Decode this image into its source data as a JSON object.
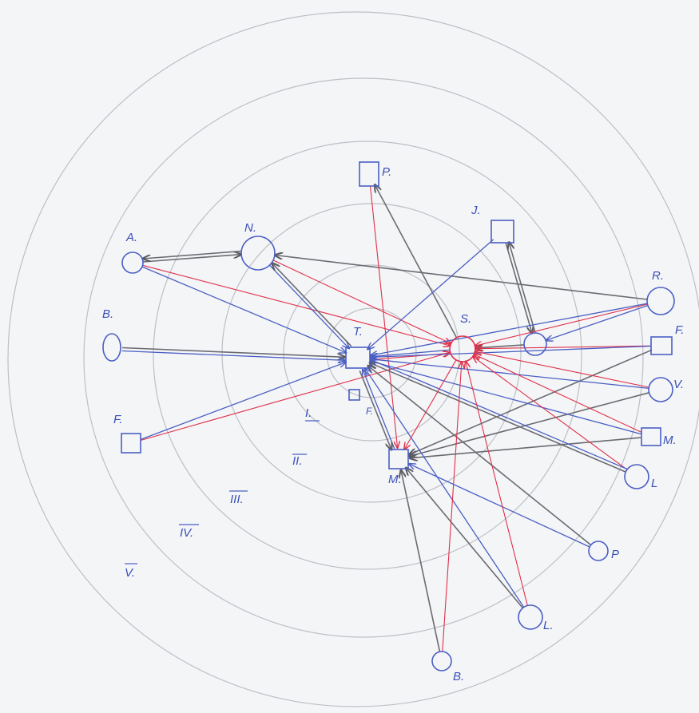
{
  "diagram": {
    "nodes": [
      {
        "id": "P1",
        "label": "P.",
        "shape": "square"
      },
      {
        "id": "J",
        "label": "J.",
        "shape": "square"
      },
      {
        "id": "A",
        "label": "A.",
        "shape": "circle"
      },
      {
        "id": "N",
        "label": "N.",
        "shape": "circle"
      },
      {
        "id": "R",
        "label": "R.",
        "shape": "circle"
      },
      {
        "id": "B1",
        "label": "B.",
        "shape": "circle"
      },
      {
        "id": "T",
        "label": "T.",
        "shape": "square"
      },
      {
        "id": "S",
        "label": "S.",
        "shape": "circle"
      },
      {
        "id": "X",
        "label": "",
        "shape": "circle"
      },
      {
        "id": "F1",
        "label": "F.",
        "shape": "square"
      },
      {
        "id": "V",
        "label": "V.",
        "shape": "circle"
      },
      {
        "id": "F2",
        "label": "F.",
        "shape": "square"
      },
      {
        "id": "Tsub",
        "label": "F.",
        "shape": "square"
      },
      {
        "id": "M1",
        "label": "M.",
        "shape": "square"
      },
      {
        "id": "M2",
        "label": "M.",
        "shape": "square"
      },
      {
        "id": "L1",
        "label": "L",
        "shape": "circle"
      },
      {
        "id": "P2",
        "label": "P",
        "shape": "circle"
      },
      {
        "id": "L2",
        "label": "L.",
        "shape": "circle"
      },
      {
        "id": "B2",
        "label": "B.",
        "shape": "circle"
      }
    ],
    "zones": [
      "I.",
      "II.",
      "III.",
      "IV.",
      "V."
    ],
    "edges": [
      {
        "from": "A",
        "to": "T",
        "color": "blue"
      },
      {
        "from": "A",
        "to": "S",
        "color": "red"
      },
      {
        "from": "A",
        "to": "N",
        "color": "gray"
      },
      {
        "from": "N",
        "to": "A",
        "color": "gray"
      },
      {
        "from": "N",
        "to": "S",
        "color": "red"
      },
      {
        "from": "N",
        "to": "T",
        "color": "blue"
      },
      {
        "from": "T",
        "to": "N",
        "color": "gray"
      },
      {
        "from": "R",
        "to": "N",
        "color": "gray"
      },
      {
        "from": "P1",
        "to": "M2",
        "color": "red"
      },
      {
        "from": "S",
        "to": "P1",
        "color": "gray"
      },
      {
        "from": "J",
        "to": "T",
        "color": "blue"
      },
      {
        "from": "J",
        "to": "X",
        "color": "gray"
      },
      {
        "from": "X",
        "to": "J",
        "color": "gray"
      },
      {
        "from": "B1",
        "to": "T",
        "color": "gray"
      },
      {
        "from": "B1",
        "to": "T",
        "color": "blue"
      },
      {
        "from": "F2",
        "to": "T",
        "color": "blue"
      },
      {
        "from": "F2",
        "to": "S",
        "color": "red"
      },
      {
        "from": "S",
        "to": "T",
        "color": "blue"
      },
      {
        "from": "T",
        "to": "S",
        "color": "red"
      },
      {
        "from": "X",
        "to": "S",
        "color": "gray"
      },
      {
        "from": "R",
        "to": "X",
        "color": "blue"
      },
      {
        "from": "R",
        "to": "S",
        "color": "red"
      },
      {
        "from": "R",
        "to": "T",
        "color": "blue"
      },
      {
        "from": "F1",
        "to": "S",
        "color": "red"
      },
      {
        "from": "F1",
        "to": "T",
        "color": "blue"
      },
      {
        "from": "F1",
        "to": "M2",
        "color": "gray"
      },
      {
        "from": "V",
        "to": "S",
        "color": "red"
      },
      {
        "from": "V",
        "to": "T",
        "color": "blue"
      },
      {
        "from": "V",
        "to": "M2",
        "color": "gray"
      },
      {
        "from": "M1",
        "to": "S",
        "color": "red"
      },
      {
        "from": "M1",
        "to": "T",
        "color": "blue"
      },
      {
        "from": "M1",
        "to": "M2",
        "color": "gray"
      },
      {
        "from": "L1",
        "to": "S",
        "color": "red"
      },
      {
        "from": "L1",
        "to": "T",
        "color": "gray"
      },
      {
        "from": "L1",
        "to": "T",
        "color": "blue"
      },
      {
        "from": "P2",
        "to": "T",
        "color": "gray"
      },
      {
        "from": "P2",
        "to": "M2",
        "color": "blue"
      },
      {
        "from": "L2",
        "to": "S",
        "color": "red"
      },
      {
        "from": "L2",
        "to": "T",
        "color": "blue"
      },
      {
        "from": "L2",
        "to": "M2",
        "color": "gray"
      },
      {
        "from": "B2",
        "to": "M2",
        "color": "gray"
      },
      {
        "from": "B2",
        "to": "S",
        "color": "red"
      },
      {
        "from": "S",
        "to": "M2",
        "color": "red"
      },
      {
        "from": "M2",
        "to": "T",
        "color": "blue"
      },
      {
        "from": "T",
        "to": "M2",
        "color": "gray"
      }
    ]
  },
  "colors": {
    "blue": "#4a5fc4",
    "red": "#e0304a",
    "gray": "#6b6b72",
    "ring": "#bdbfc6",
    "paper": "#f4f5f7"
  }
}
